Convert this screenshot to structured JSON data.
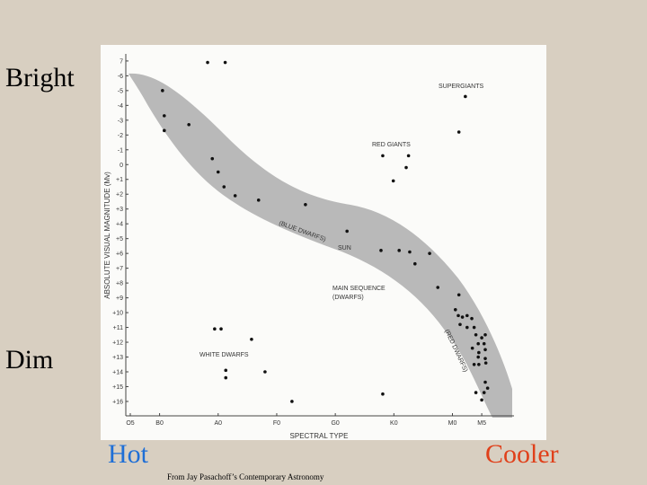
{
  "slide": {
    "left_top": "Bright",
    "left_bottom": "Dim",
    "hot": "Hot",
    "hot_color": "#1f6fd6",
    "cool": "Cooler",
    "cool_color": "#e0401a",
    "credit": "From Jay Pasachoff’s Contemporary Astronomy"
  },
  "chart_data": {
    "type": "scatter",
    "x_label": "SPECTRAL TYPE",
    "y_label": "ABSOLUTE VISUAL MAGNITUDE (Mv)",
    "annotations": [
      "SUPERGIANTS",
      "RED GIANTS",
      "(BLUE DWARFS)",
      "SUN",
      "MAIN SEQUENCE",
      "(DWARFS)",
      "(RED DWARFS)",
      "WHITE DWARFS"
    ],
    "color": "#111111",
    "xlim": [
      2.7,
      70.2
    ],
    "ylim": [
      16.9,
      -7.2
    ],
    "xticks": [
      {
        "value": 5,
        "label": "O5"
      },
      {
        "value": 10,
        "label": "B0"
      },
      {
        "value": 20,
        "label": "A0"
      },
      {
        "value": 30,
        "label": "F0"
      },
      {
        "value": 40,
        "label": "G0"
      },
      {
        "value": 50,
        "label": "K0"
      },
      {
        "value": 60,
        "label": "M0"
      },
      {
        "value": 65,
        "label": "M5"
      }
    ],
    "yticks": [
      {
        "value": -7,
        "label": "7"
      },
      -6,
      -5,
      -4,
      -3,
      -2,
      -1,
      0,
      {
        "value": 1,
        "label": "+1"
      },
      {
        "value": 2,
        "label": "+2"
      },
      {
        "value": 3,
        "label": "+3"
      },
      {
        "value": 4,
        "label": "+4"
      },
      {
        "value": 5,
        "label": "+5"
      },
      {
        "value": 6,
        "label": "+6"
      },
      {
        "value": 7,
        "label": "+7"
      },
      {
        "value": 8,
        "label": "+8"
      },
      {
        "value": 9,
        "label": "+9"
      },
      {
        "value": 10,
        "label": "+10"
      },
      {
        "value": 11,
        "label": "+11"
      },
      {
        "value": 12,
        "label": "+12"
      },
      {
        "value": 13,
        "label": "+13"
      },
      {
        "value": 14,
        "label": "+14"
      },
      {
        "value": 15,
        "label": "+15"
      },
      {
        "value": 16,
        "label": "+16"
      }
    ],
    "x": [
      18.2,
      21.2,
      10.5,
      10.8,
      10.8,
      15.0,
      19.0,
      20.0,
      21.0,
      22.9,
      26.9,
      34.9,
      42.0,
      62.2,
      61.1,
      48.1,
      52.5,
      52.1,
      49.9,
      47.8,
      50.9,
      52.7,
      56.1,
      53.6,
      57.5,
      61.1,
      60.5,
      61.0,
      61.7,
      62.5,
      63.3,
      61.3,
      62.5,
      63.7,
      64.0,
      65.0,
      65.6,
      64.4,
      65.4,
      63.4,
      64.5,
      65.6,
      64.4,
      65.6,
      63.7,
      64.5,
      65.7,
      65.6,
      66.0,
      65.4,
      64.0,
      65.0,
      19.4,
      20.5,
      25.7,
      21.3,
      21.3,
      28.0,
      32.6,
      48.1
    ],
    "values": [
      -6.9,
      -6.9,
      -5.0,
      -3.3,
      -2.3,
      -2.7,
      -0.4,
      0.5,
      1.5,
      2.1,
      2.4,
      2.7,
      4.5,
      -4.6,
      -2.2,
      -0.6,
      -0.6,
      0.2,
      1.1,
      5.8,
      5.8,
      5.9,
      6.0,
      6.7,
      8.3,
      8.8,
      9.8,
      10.2,
      10.3,
      10.2,
      10.4,
      10.8,
      11.0,
      11.0,
      11.5,
      11.7,
      11.5,
      12.1,
      12.1,
      12.4,
      12.7,
      12.5,
      13.0,
      13.1,
      13.5,
      13.5,
      13.4,
      14.7,
      15.1,
      15.4,
      15.4,
      15.9,
      11.1,
      11.1,
      11.8,
      13.9,
      14.4,
      14.0,
      16.0,
      15.5
    ]
  }
}
